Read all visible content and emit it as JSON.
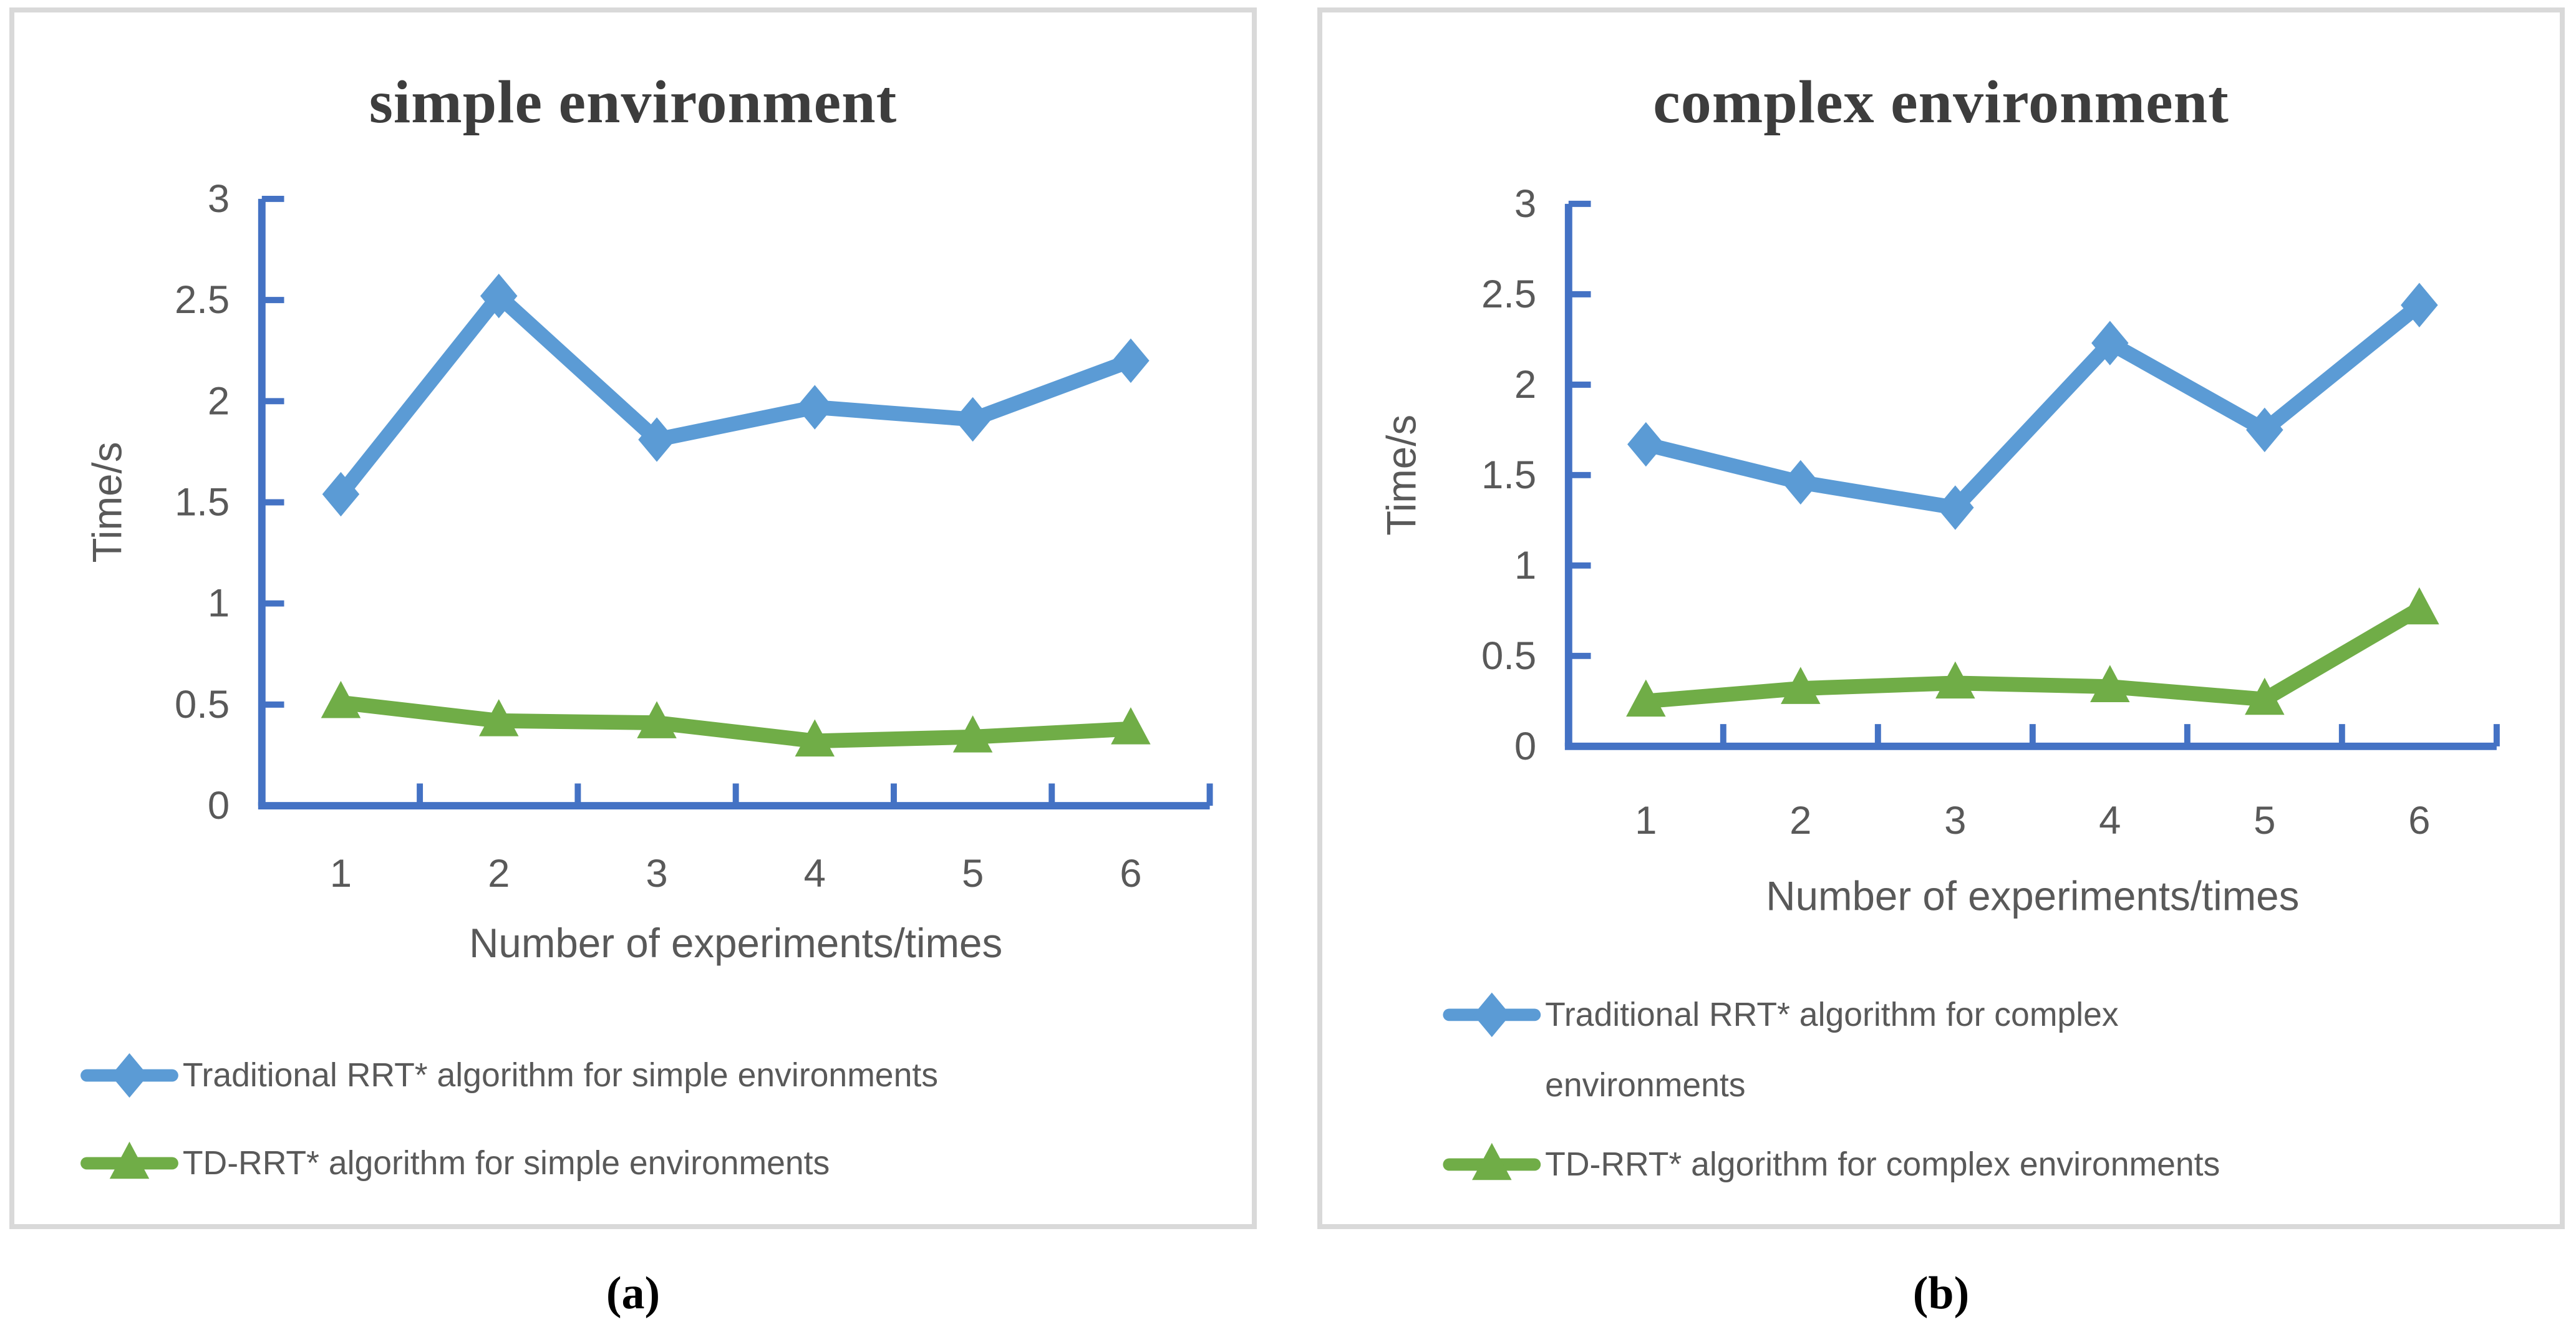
{
  "captions": {
    "a": "(a)",
    "b": "(b)"
  },
  "colors": {
    "series_blue": "#5B9BD5",
    "series_green": "#70AD47",
    "axis_blue": "#4472C4",
    "text_gray": "#595959",
    "title_gray": "#3D3D3D",
    "panel_border": "#D9D9D9"
  },
  "chart_data": [
    {
      "type": "line",
      "title": "simple environment",
      "xlabel": "Number of experiments/times",
      "ylabel": "Time/s",
      "categories": [
        "1",
        "2",
        "3",
        "4",
        "5",
        "6"
      ],
      "ylim": [
        0,
        3
      ],
      "yticks": [
        0,
        0.5,
        1,
        1.5,
        2,
        2.5,
        3
      ],
      "ytick_labels": [
        "0",
        "0.5",
        "1",
        "1.5",
        "2",
        "2.5",
        "3"
      ],
      "grid": false,
      "legend_position": "bottom-left",
      "series": [
        {
          "name": "Traditional RRT* algorithm for simple environments",
          "legend_lines": [
            "Traditional RRT* algorithm for simple environments"
          ],
          "marker": "diamond",
          "color": "#5B9BD5",
          "values": [
            1.54,
            2.52,
            1.81,
            1.97,
            1.91,
            2.2
          ]
        },
        {
          "name": "TD-RRT* algorithm for simple environments",
          "legend_lines": [
            "TD-RRT* algorithm for simple environments"
          ],
          "marker": "triangle",
          "color": "#70AD47",
          "values": [
            0.51,
            0.42,
            0.41,
            0.32,
            0.34,
            0.38
          ]
        }
      ]
    },
    {
      "type": "line",
      "title": "complex environment",
      "xlabel": "Number of experiments/times",
      "ylabel": "Time/s",
      "categories": [
        "1",
        "2",
        "3",
        "4",
        "5",
        "6"
      ],
      "ylim": [
        0,
        3
      ],
      "yticks": [
        0,
        0.5,
        1,
        1.5,
        2,
        2.5,
        3
      ],
      "ytick_labels": [
        "0",
        "0.5",
        "1",
        "1.5",
        "2",
        "2.5",
        "3"
      ],
      "grid": false,
      "legend_position": "bottom-left",
      "series": [
        {
          "name": "Traditional RRT* algorithm for complex environments",
          "legend_lines": [
            "Traditional RRT* algorithm for complex",
            "environments"
          ],
          "marker": "diamond",
          "color": "#5B9BD5",
          "values": [
            1.67,
            1.46,
            1.32,
            2.23,
            1.75,
            2.44
          ]
        },
        {
          "name": "TD-RRT* algorithm for complex environments",
          "legend_lines": [
            "TD-RRT* algorithm for complex environments"
          ],
          "marker": "triangle",
          "color": "#70AD47",
          "values": [
            0.25,
            0.32,
            0.35,
            0.33,
            0.26,
            0.76
          ]
        }
      ]
    }
  ]
}
